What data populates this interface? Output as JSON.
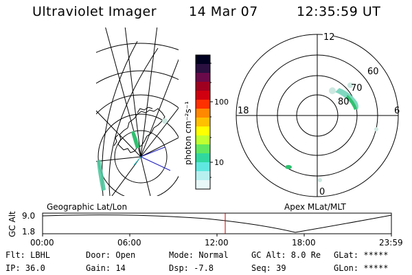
{
  "header": {
    "instrument": "Ultraviolet Imager",
    "date": "14 Mar 07",
    "time": "12:35:59 UT"
  },
  "colorbar": {
    "unit_label": "photon cm⁻²s⁻¹",
    "ticks": [
      "100",
      "10"
    ],
    "palette": [
      "#000020",
      "#2a1040",
      "#6a0a4a",
      "#a00020",
      "#d00010",
      "#ff3000",
      "#ff8800",
      "#ffc000",
      "#ffff00",
      "#c0ff30",
      "#60e860",
      "#30d8a0",
      "#60e8e0",
      "#b8f0f0",
      "#e8f8f8"
    ]
  },
  "polar_plot": {
    "labels": {
      "top": "12",
      "left": "18",
      "right": "6",
      "bottom": "0",
      "ring_60": "60",
      "ring_70": "70",
      "ring_80": "80"
    }
  },
  "geo_plot": {
    "label": "Geographic Lat/Lon"
  },
  "apex_label": "Apex MLat/MLT",
  "timeline": {
    "y_axis_label": "GC Alt",
    "y_ticks": [
      "9.0",
      "1.8"
    ],
    "x_ticks": [
      "00:00",
      "06:00",
      "12:00",
      "18:00",
      "23:59"
    ],
    "marker_time": "12:35:59"
  },
  "footer": {
    "flt": "Flt: LBHL",
    "door": "Door: Open",
    "mode": "Mode: Normal",
    "gc_alt": "GC Alt: 8.0 Re",
    "glat": "GLat: *****",
    "ip": "IP: 36.0",
    "gain": "Gain: 14",
    "dsp": "Dsp:   -7.8",
    "seq": "Seq: 39",
    "glon": "GLon: *****"
  },
  "colors": {
    "marker": "#c00000",
    "aurora_light": "#cce8e0",
    "aurora_mid": "#80d8c0",
    "aurora_green": "#30c060",
    "cyan": "#40d0d0",
    "blue_line": "#2020c0"
  }
}
